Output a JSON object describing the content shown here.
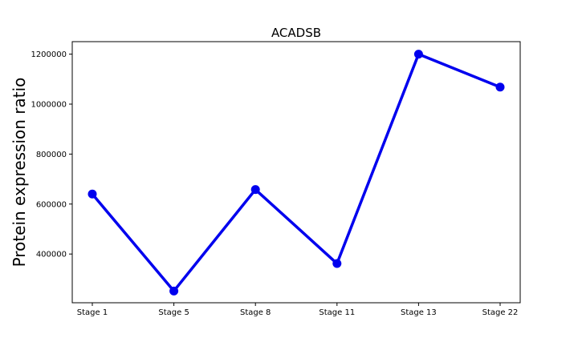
{
  "chart_data": {
    "type": "line",
    "title": "ACADSB",
    "xlabel": "",
    "ylabel": "Protein expression ratio",
    "categories": [
      "Stage 1",
      "Stage 5",
      "Stage 8",
      "Stage 11",
      "Stage 13",
      "Stage 22"
    ],
    "series": [
      {
        "values": [
          640000,
          252000,
          658000,
          362000,
          1200000,
          1068000
        ],
        "color": "#0000ee"
      }
    ],
    "ylim": [
      205000,
      1250000
    ],
    "yticks": [
      400000,
      600000,
      800000,
      1000000,
      1200000
    ],
    "grid": false,
    "legend": "none"
  }
}
